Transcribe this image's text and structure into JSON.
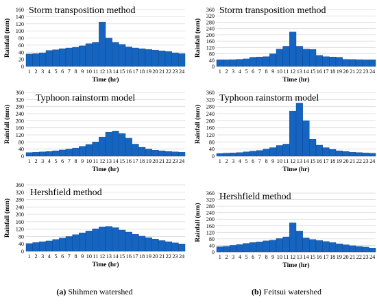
{
  "chart_data": [
    {
      "type": "bar",
      "title": "Storm transposition method",
      "xlabel": "Time (hr)",
      "ylabel": "Rainfall (mm)",
      "ylim": [
        0,
        160
      ],
      "yticks": [
        0,
        20,
        40,
        60,
        80,
        100,
        120,
        140,
        160
      ],
      "categories": [
        "1",
        "2",
        "3",
        "4",
        "5",
        "6",
        "7",
        "8",
        "9",
        "10",
        "11",
        "12",
        "13",
        "14",
        "15",
        "16",
        "17",
        "18",
        "19",
        "20",
        "21",
        "22",
        "23",
        "24"
      ],
      "values": [
        35,
        36,
        38,
        45,
        47,
        50,
        52,
        54,
        58,
        64,
        68,
        125,
        80,
        68,
        62,
        55,
        52,
        50,
        48,
        46,
        44,
        42,
        38,
        36
      ]
    },
    {
      "type": "bar",
      "title": "Storm transposition method",
      "xlabel": "Time (hr)",
      "ylabel": "Rainfall (mm)",
      "ylim": [
        0,
        360
      ],
      "yticks": [
        0,
        40,
        80,
        120,
        160,
        200,
        240,
        280,
        320,
        360
      ],
      "categories": [
        "1",
        "2",
        "3",
        "4",
        "5",
        "6",
        "7",
        "8",
        "9",
        "10",
        "11",
        "12",
        "13",
        "14",
        "15",
        "16",
        "17",
        "18",
        "19",
        "20",
        "21",
        "22",
        "23",
        "24"
      ],
      "values": [
        42,
        42,
        43,
        45,
        48,
        58,
        60,
        62,
        80,
        110,
        128,
        218,
        128,
        110,
        108,
        70,
        62,
        60,
        58,
        45,
        44,
        43,
        42,
        42
      ]
    },
    {
      "type": "bar",
      "title": "Typhoon rainstorm model",
      "xlabel": "Time (hr)",
      "ylabel": "Rainfall (mm)",
      "ylim": [
        0,
        360
      ],
      "yticks": [
        0,
        40,
        80,
        120,
        160,
        200,
        240,
        280,
        320,
        360
      ],
      "categories": [
        "1",
        "2",
        "3",
        "4",
        "5",
        "6",
        "7",
        "8",
        "9",
        "10",
        "11",
        "12",
        "13",
        "14",
        "15",
        "16",
        "17",
        "18",
        "19",
        "20",
        "21",
        "22",
        "23",
        "24"
      ],
      "values": [
        20,
        22,
        24,
        26,
        30,
        35,
        40,
        46,
        55,
        66,
        80,
        108,
        135,
        142,
        128,
        102,
        68,
        50,
        40,
        34,
        30,
        26,
        24,
        22
      ]
    },
    {
      "type": "bar",
      "title": "Typhoon rainstorm model",
      "xlabel": "Time (hr)",
      "ylabel": "Rainfall (mm)",
      "ylim": [
        0,
        360
      ],
      "yticks": [
        0,
        40,
        80,
        120,
        160,
        200,
        240,
        280,
        320,
        360
      ],
      "categories": [
        "1",
        "2",
        "3",
        "4",
        "5",
        "6",
        "7",
        "8",
        "9",
        "10",
        "11",
        "12",
        "13",
        "14",
        "15",
        "16",
        "17",
        "18",
        "19",
        "20",
        "21",
        "22",
        "23",
        "24"
      ],
      "values": [
        15,
        17,
        18,
        20,
        24,
        28,
        32,
        40,
        48,
        60,
        68,
        255,
        300,
        200,
        96,
        62,
        48,
        38,
        30,
        26,
        22,
        20,
        18,
        16
      ]
    },
    {
      "type": "bar",
      "title": "Hershfield method",
      "xlabel": "Time (hr)",
      "ylabel": "Rainfall (mm)",
      "ylim": [
        0,
        360
      ],
      "yticks": [
        0,
        40,
        80,
        120,
        160,
        200,
        240,
        280,
        320,
        360
      ],
      "categories": [
        "1",
        "2",
        "3",
        "4",
        "5",
        "6",
        "7",
        "8",
        "9",
        "10",
        "11",
        "12",
        "13",
        "14",
        "15",
        "16",
        "17",
        "18",
        "19",
        "20",
        "21",
        "22",
        "23",
        "24"
      ],
      "values": [
        42,
        48,
        52,
        56,
        64,
        72,
        80,
        90,
        100,
        110,
        122,
        132,
        135,
        128,
        115,
        104,
        92,
        82,
        74,
        66,
        58,
        52,
        46,
        40
      ]
    },
    {
      "type": "bar",
      "title": "Hershfield method",
      "xlabel": "Time (hr)",
      "ylabel": "Rainfall (mm)",
      "ylim": [
        0,
        360
      ],
      "yticks": [
        0,
        40,
        80,
        120,
        160,
        200,
        240,
        280,
        320,
        360
      ],
      "categories": [
        "1",
        "2",
        "3",
        "4",
        "5",
        "6",
        "7",
        "8",
        "9",
        "10",
        "11",
        "12",
        "13",
        "14",
        "15",
        "16",
        "17",
        "18",
        "19",
        "20",
        "21",
        "22",
        "23",
        "24"
      ],
      "values": [
        32,
        35,
        40,
        46,
        52,
        58,
        62,
        68,
        72,
        82,
        92,
        178,
        128,
        86,
        76,
        70,
        64,
        58,
        50,
        44,
        38,
        34,
        30,
        24
      ]
    }
  ],
  "captions": [
    {
      "label": "(a)",
      "text": " Shihmen watershed"
    },
    {
      "label": "(b)",
      "text": " Feitsui watershed"
    }
  ],
  "colors": {
    "bar_fill": "#1565c0",
    "bar_stroke": "#0d3f8a",
    "grid": "#d9d9d9"
  }
}
